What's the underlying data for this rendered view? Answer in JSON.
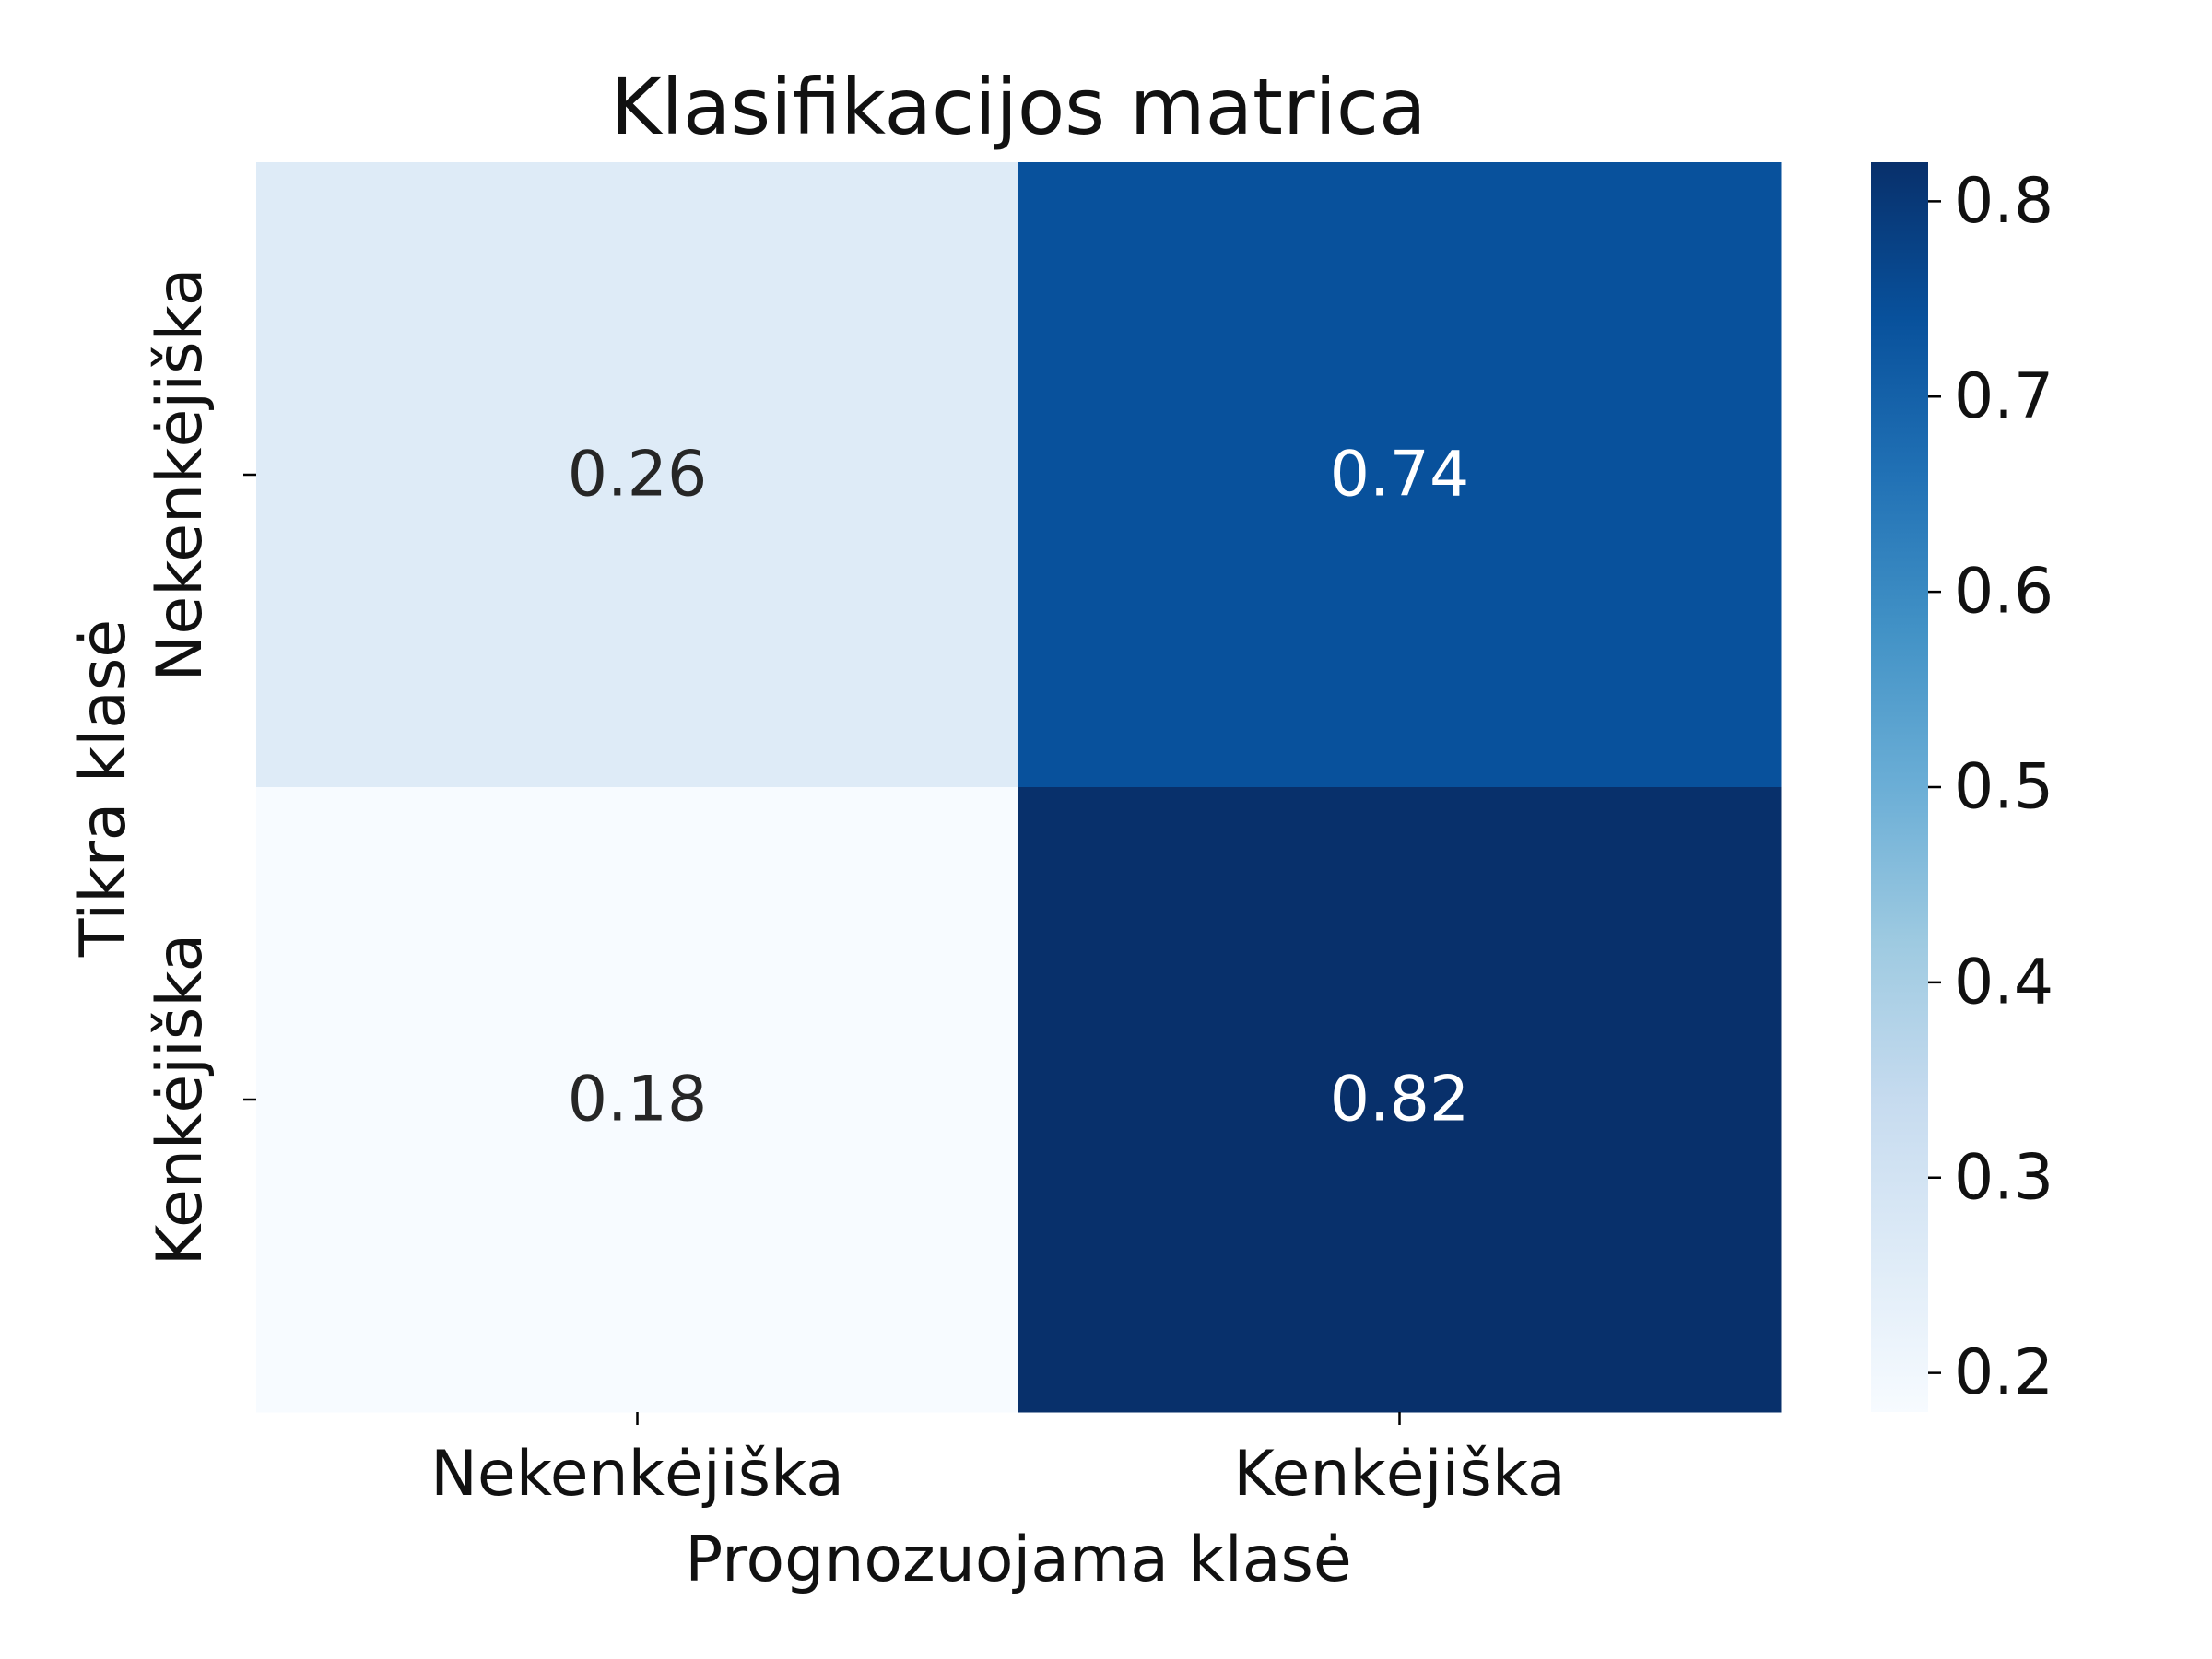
{
  "chart_data": {
    "type": "heatmap",
    "title": "Klasifikacijos matrica",
    "xlabel": "Prognozuojama klasė",
    "ylabel": "Tikra klasė",
    "x_categories": [
      "Nekenkėjiška",
      "Kenkėjiška"
    ],
    "y_categories": [
      "Nekenkėjiška",
      "Kenkėjiška"
    ],
    "values": [
      [
        0.26,
        0.74
      ],
      [
        0.18,
        0.82
      ]
    ],
    "cell_labels": [
      [
        "0.26",
        "0.74"
      ],
      [
        "0.18",
        "0.82"
      ]
    ],
    "colorbar": {
      "range": [
        0.18,
        0.82
      ],
      "ticks": [
        0.2,
        0.3,
        0.4,
        0.5,
        0.6,
        0.7,
        0.8
      ],
      "tick_labels": [
        "0.2",
        "0.3",
        "0.4",
        "0.5",
        "0.6",
        "0.7",
        "0.8"
      ],
      "colormap": "Blues"
    },
    "grid": false
  }
}
